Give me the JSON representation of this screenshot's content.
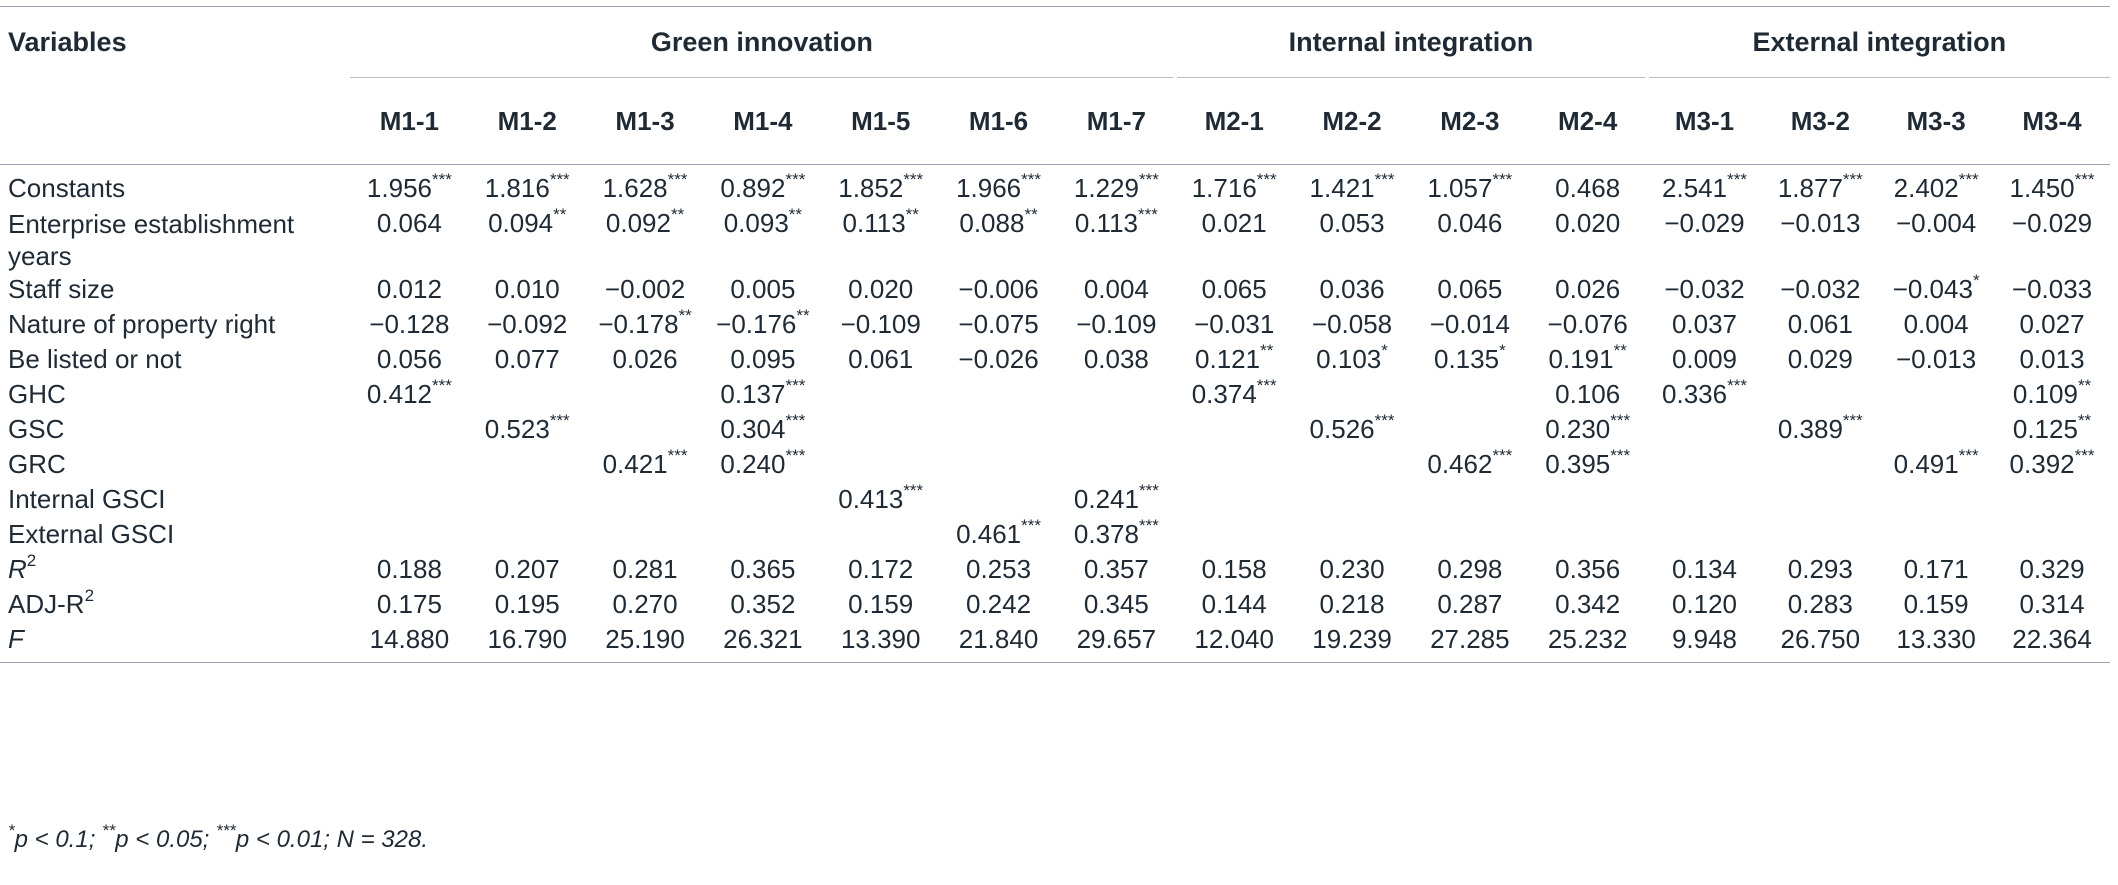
{
  "table": {
    "var_header": "Variables",
    "groups": [
      {
        "label": "Green innovation",
        "span": 7
      },
      {
        "label": "Internal integration",
        "span": 4
      },
      {
        "label": "External integration",
        "span": 4
      }
    ],
    "models": [
      "M1-1",
      "M1-2",
      "M1-3",
      "M1-4",
      "M1-5",
      "M1-6",
      "M1-7",
      "M2-1",
      "M2-2",
      "M2-3",
      "M2-4",
      "M3-1",
      "M3-2",
      "M3-3",
      "M3-4"
    ],
    "rows": [
      {
        "var": "Constants",
        "cells": [
          "1.956***",
          "1.816***",
          "1.628***",
          "0.892***",
          "1.852***",
          "1.966***",
          "1.229***",
          "1.716***",
          "1.421***",
          "1.057***",
          "0.468",
          "2.541***",
          "1.877***",
          "2.402***",
          "1.450***"
        ]
      },
      {
        "var": "Enterprise establishment years",
        "cells": [
          "0.064",
          "0.094**",
          "0.092**",
          "0.093**",
          "0.113**",
          "0.088**",
          "0.113***",
          "0.021",
          "0.053",
          "0.046",
          "0.020",
          "−0.029",
          "−0.013",
          "−0.004",
          "−0.029"
        ]
      },
      {
        "var": "Staff size",
        "cells": [
          "0.012",
          "0.010",
          "−0.002",
          "0.005",
          "0.020",
          "−0.006",
          "0.004",
          "0.065",
          "0.036",
          "0.065",
          "0.026",
          "−0.032",
          "−0.032",
          "−0.043*",
          "−0.033"
        ]
      },
      {
        "var": "Nature of property right",
        "cells": [
          "−0.128",
          "−0.092",
          "−0.178**",
          "−0.176**",
          "−0.109",
          "−0.075",
          "−0.109",
          "−0.031",
          "−0.058",
          "−0.014",
          "−0.076",
          "0.037",
          "0.061",
          "0.004",
          "0.027"
        ]
      },
      {
        "var": "Be listed or not",
        "cells": [
          "0.056",
          "0.077",
          "0.026",
          "0.095",
          "0.061",
          "−0.026",
          "0.038",
          "0.121**",
          "0.103*",
          "0.135*",
          "0.191**",
          "0.009",
          "0.029",
          "−0.013",
          "0.013"
        ]
      },
      {
        "var": "GHC",
        "cells": [
          "0.412***",
          "",
          "",
          "0.137***",
          "",
          "",
          "",
          "0.374***",
          "",
          "",
          "0.106",
          "0.336***",
          "",
          "",
          "0.109**"
        ]
      },
      {
        "var": "GSC",
        "cells": [
          "",
          "0.523***",
          "",
          "0.304***",
          "",
          "",
          "",
          "",
          "0.526***",
          "",
          "0.230***",
          "",
          "0.389***",
          "",
          "0.125**"
        ]
      },
      {
        "var": "GRC",
        "cells": [
          "",
          "",
          "0.421***",
          "0.240***",
          "",
          "",
          "",
          "",
          "",
          "0.462***",
          "0.395***",
          "",
          "",
          "0.491***",
          "0.392***"
        ]
      },
      {
        "var": "Internal GSCI",
        "cells": [
          "",
          "",
          "",
          "",
          "0.413***",
          "",
          "0.241***",
          "",
          "",
          "",
          "",
          "",
          "",
          "",
          ""
        ]
      },
      {
        "var": "External GSCI",
        "cells": [
          "",
          "",
          "",
          "",
          "",
          "0.461***",
          "0.378***",
          "",
          "",
          "",
          "",
          "",
          "",
          "",
          ""
        ]
      },
      {
        "var": "R",
        "var_sup": "2",
        "italic": true,
        "cells": [
          "0.188",
          "0.207",
          "0.281",
          "0.365",
          "0.172",
          "0.253",
          "0.357",
          "0.158",
          "0.230",
          "0.298",
          "0.356",
          "0.134",
          "0.293",
          "0.171",
          "0.329"
        ]
      },
      {
        "var": "ADJ-R",
        "var_sup": "2",
        "cells": [
          "0.175",
          "0.195",
          "0.270",
          "0.352",
          "0.159",
          "0.242",
          "0.345",
          "0.144",
          "0.218",
          "0.287",
          "0.342",
          "0.120",
          "0.283",
          "0.159",
          "0.314"
        ]
      },
      {
        "var": "F",
        "italic": true,
        "cells": [
          "14.880",
          "16.790",
          "25.190",
          "26.321",
          "13.390",
          "21.840",
          "29.657",
          "12.040",
          "19.239",
          "27.285",
          "25.232",
          "9.948",
          "26.750",
          "13.330",
          "22.364"
        ]
      }
    ],
    "note": "*p < 0.1; **p < 0.05; ***p < 0.01; N = 328."
  }
}
